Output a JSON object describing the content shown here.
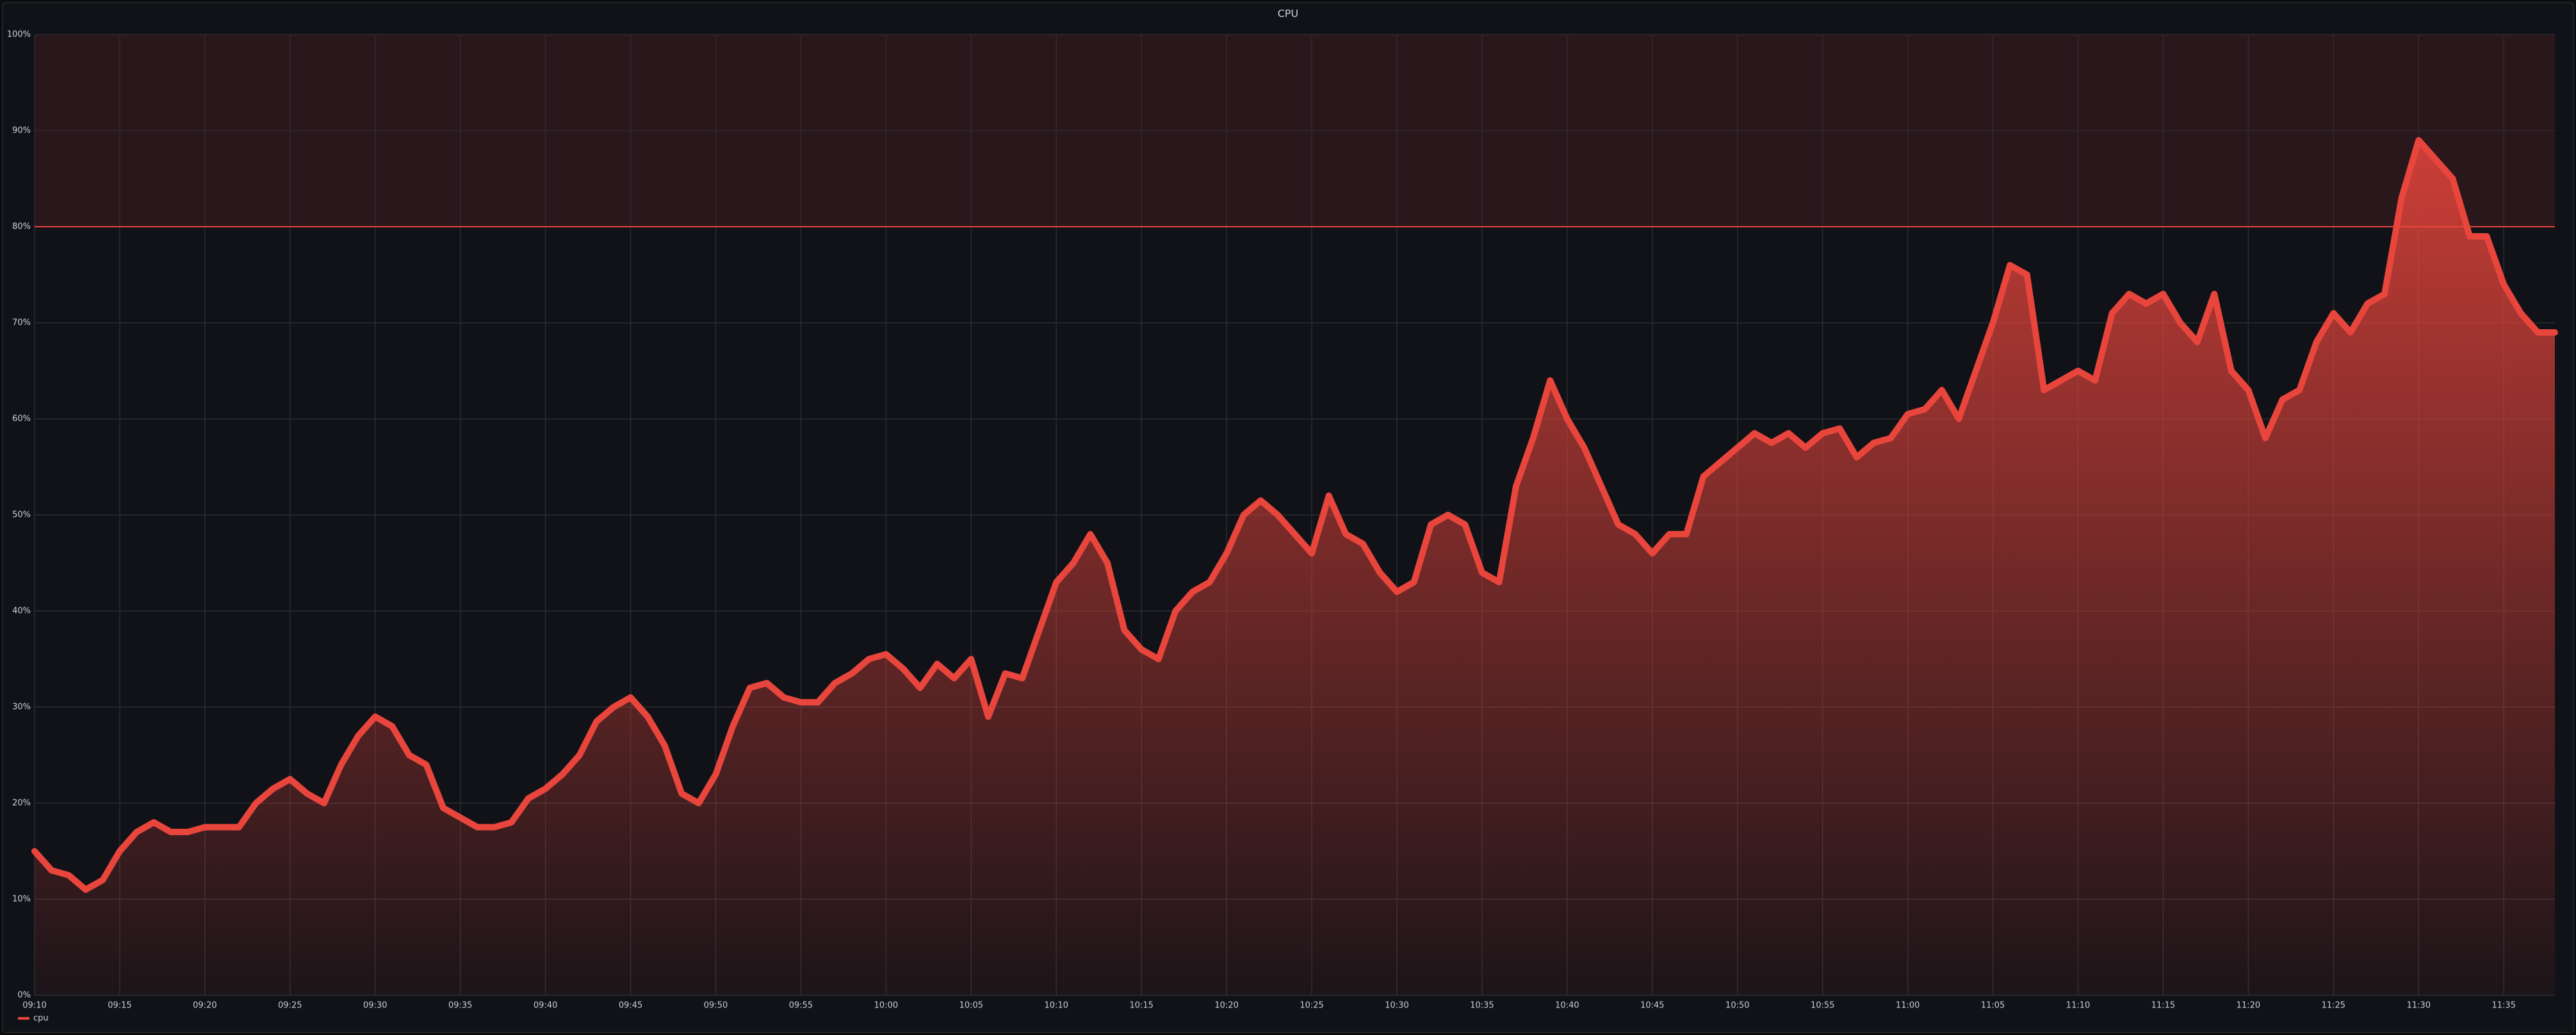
{
  "chart_data": {
    "type": "area",
    "title": "CPU",
    "x": [
      "09:10",
      "09:11",
      "09:12",
      "09:13",
      "09:14",
      "09:15",
      "09:16",
      "09:17",
      "09:18",
      "09:19",
      "09:20",
      "09:21",
      "09:22",
      "09:23",
      "09:24",
      "09:25",
      "09:26",
      "09:27",
      "09:28",
      "09:29",
      "09:30",
      "09:31",
      "09:32",
      "09:33",
      "09:34",
      "09:35",
      "09:36",
      "09:37",
      "09:38",
      "09:39",
      "09:40",
      "09:41",
      "09:42",
      "09:43",
      "09:44",
      "09:45",
      "09:46",
      "09:47",
      "09:48",
      "09:49",
      "09:50",
      "09:51",
      "09:52",
      "09:53",
      "09:54",
      "09:55",
      "09:56",
      "09:57",
      "09:58",
      "09:59",
      "10:00",
      "10:01",
      "10:02",
      "10:03",
      "10:04",
      "10:05",
      "10:06",
      "10:07",
      "10:08",
      "10:09",
      "10:10",
      "10:11",
      "10:12",
      "10:13",
      "10:14",
      "10:15",
      "10:16",
      "10:17",
      "10:18",
      "10:19",
      "10:20",
      "10:21",
      "10:22",
      "10:23",
      "10:24",
      "10:25",
      "10:26",
      "10:27",
      "10:28",
      "10:29",
      "10:30",
      "10:31",
      "10:32",
      "10:33",
      "10:34",
      "10:35",
      "10:36",
      "10:37",
      "10:38",
      "10:39",
      "10:40",
      "10:41",
      "10:42",
      "10:43",
      "10:44",
      "10:45",
      "10:46",
      "10:47",
      "10:48",
      "10:49",
      "10:50",
      "10:51",
      "10:52",
      "10:53",
      "10:54",
      "10:55",
      "10:56",
      "10:57",
      "10:58",
      "10:59",
      "11:00",
      "11:01",
      "11:02",
      "11:03",
      "11:04",
      "11:05",
      "11:06",
      "11:07",
      "11:08",
      "11:09",
      "11:10",
      "11:11",
      "11:12",
      "11:13",
      "11:14",
      "11:15",
      "11:16",
      "11:17",
      "11:18",
      "11:19",
      "11:20",
      "11:21",
      "11:22",
      "11:23",
      "11:24",
      "11:25",
      "11:26",
      "11:27",
      "11:28",
      "11:29",
      "11:30",
      "11:31",
      "11:32",
      "11:33",
      "11:34",
      "11:35",
      "11:36",
      "11:37",
      "11:38"
    ],
    "series": [
      {
        "name": "cpu",
        "color": "#e8453c",
        "values": [
          15,
          13,
          12.5,
          11,
          12,
          15,
          17,
          18,
          17,
          17,
          17.5,
          17.5,
          17.5,
          20,
          21.5,
          22.5,
          21,
          20,
          24,
          27,
          29,
          28,
          25,
          24,
          19.5,
          18.5,
          17.5,
          17.5,
          18,
          20.5,
          21.5,
          23,
          25,
          28.5,
          30,
          31,
          29,
          26,
          21,
          20,
          23,
          28,
          32,
          32.5,
          31,
          30.5,
          30.5,
          32.5,
          33.5,
          35,
          35.5,
          34,
          32,
          34.5,
          33,
          35,
          29,
          33.5,
          33,
          38,
          43,
          45,
          48,
          45,
          38,
          36,
          35,
          40,
          42,
          43,
          46,
          50,
          51.5,
          50,
          48,
          46,
          52,
          48,
          47,
          44,
          42,
          43,
          49,
          50,
          49,
          44,
          43,
          53,
          58,
          64,
          60,
          57,
          53,
          49,
          48,
          46,
          48,
          48,
          54,
          55.5,
          57,
          58.5,
          57.5,
          58.5,
          57,
          58.5,
          59,
          56,
          57.5,
          58,
          60.5,
          61,
          63,
          60,
          65,
          70,
          76,
          75,
          63,
          64,
          65,
          64,
          71,
          73,
          72,
          73,
          70,
          68,
          73,
          65,
          63,
          58,
          62,
          63,
          68,
          71,
          69,
          72,
          73,
          83,
          89,
          87,
          85,
          79,
          79,
          74,
          71,
          69,
          69
        ]
      }
    ],
    "xlim": [
      "09:10",
      "11:38"
    ],
    "xticks": [
      "09:10",
      "09:15",
      "09:20",
      "09:25",
      "09:30",
      "09:35",
      "09:40",
      "09:45",
      "09:50",
      "09:55",
      "10:00",
      "10:05",
      "10:10",
      "10:15",
      "10:20",
      "10:25",
      "10:30",
      "10:35",
      "10:40",
      "10:45",
      "10:50",
      "10:55",
      "11:00",
      "11:05",
      "11:10",
      "11:15",
      "11:20",
      "11:25",
      "11:30",
      "11:35"
    ],
    "ylim": [
      0,
      100
    ],
    "yticks": [
      {
        "value": 0,
        "label": "0%"
      },
      {
        "value": 10,
        "label": "10%"
      },
      {
        "value": 20,
        "label": "20%"
      },
      {
        "value": 30,
        "label": "30%"
      },
      {
        "value": 40,
        "label": "40%"
      },
      {
        "value": 50,
        "label": "50%"
      },
      {
        "value": 60,
        "label": "60%"
      },
      {
        "value": 70,
        "label": "70%"
      },
      {
        "value": 80,
        "label": "80%"
      },
      {
        "value": 90,
        "label": "90%"
      },
      {
        "value": 100,
        "label": "100%"
      }
    ],
    "threshold": 80,
    "threshold_color": "#e8453c",
    "grid": true,
    "legend": "bottom-left"
  }
}
